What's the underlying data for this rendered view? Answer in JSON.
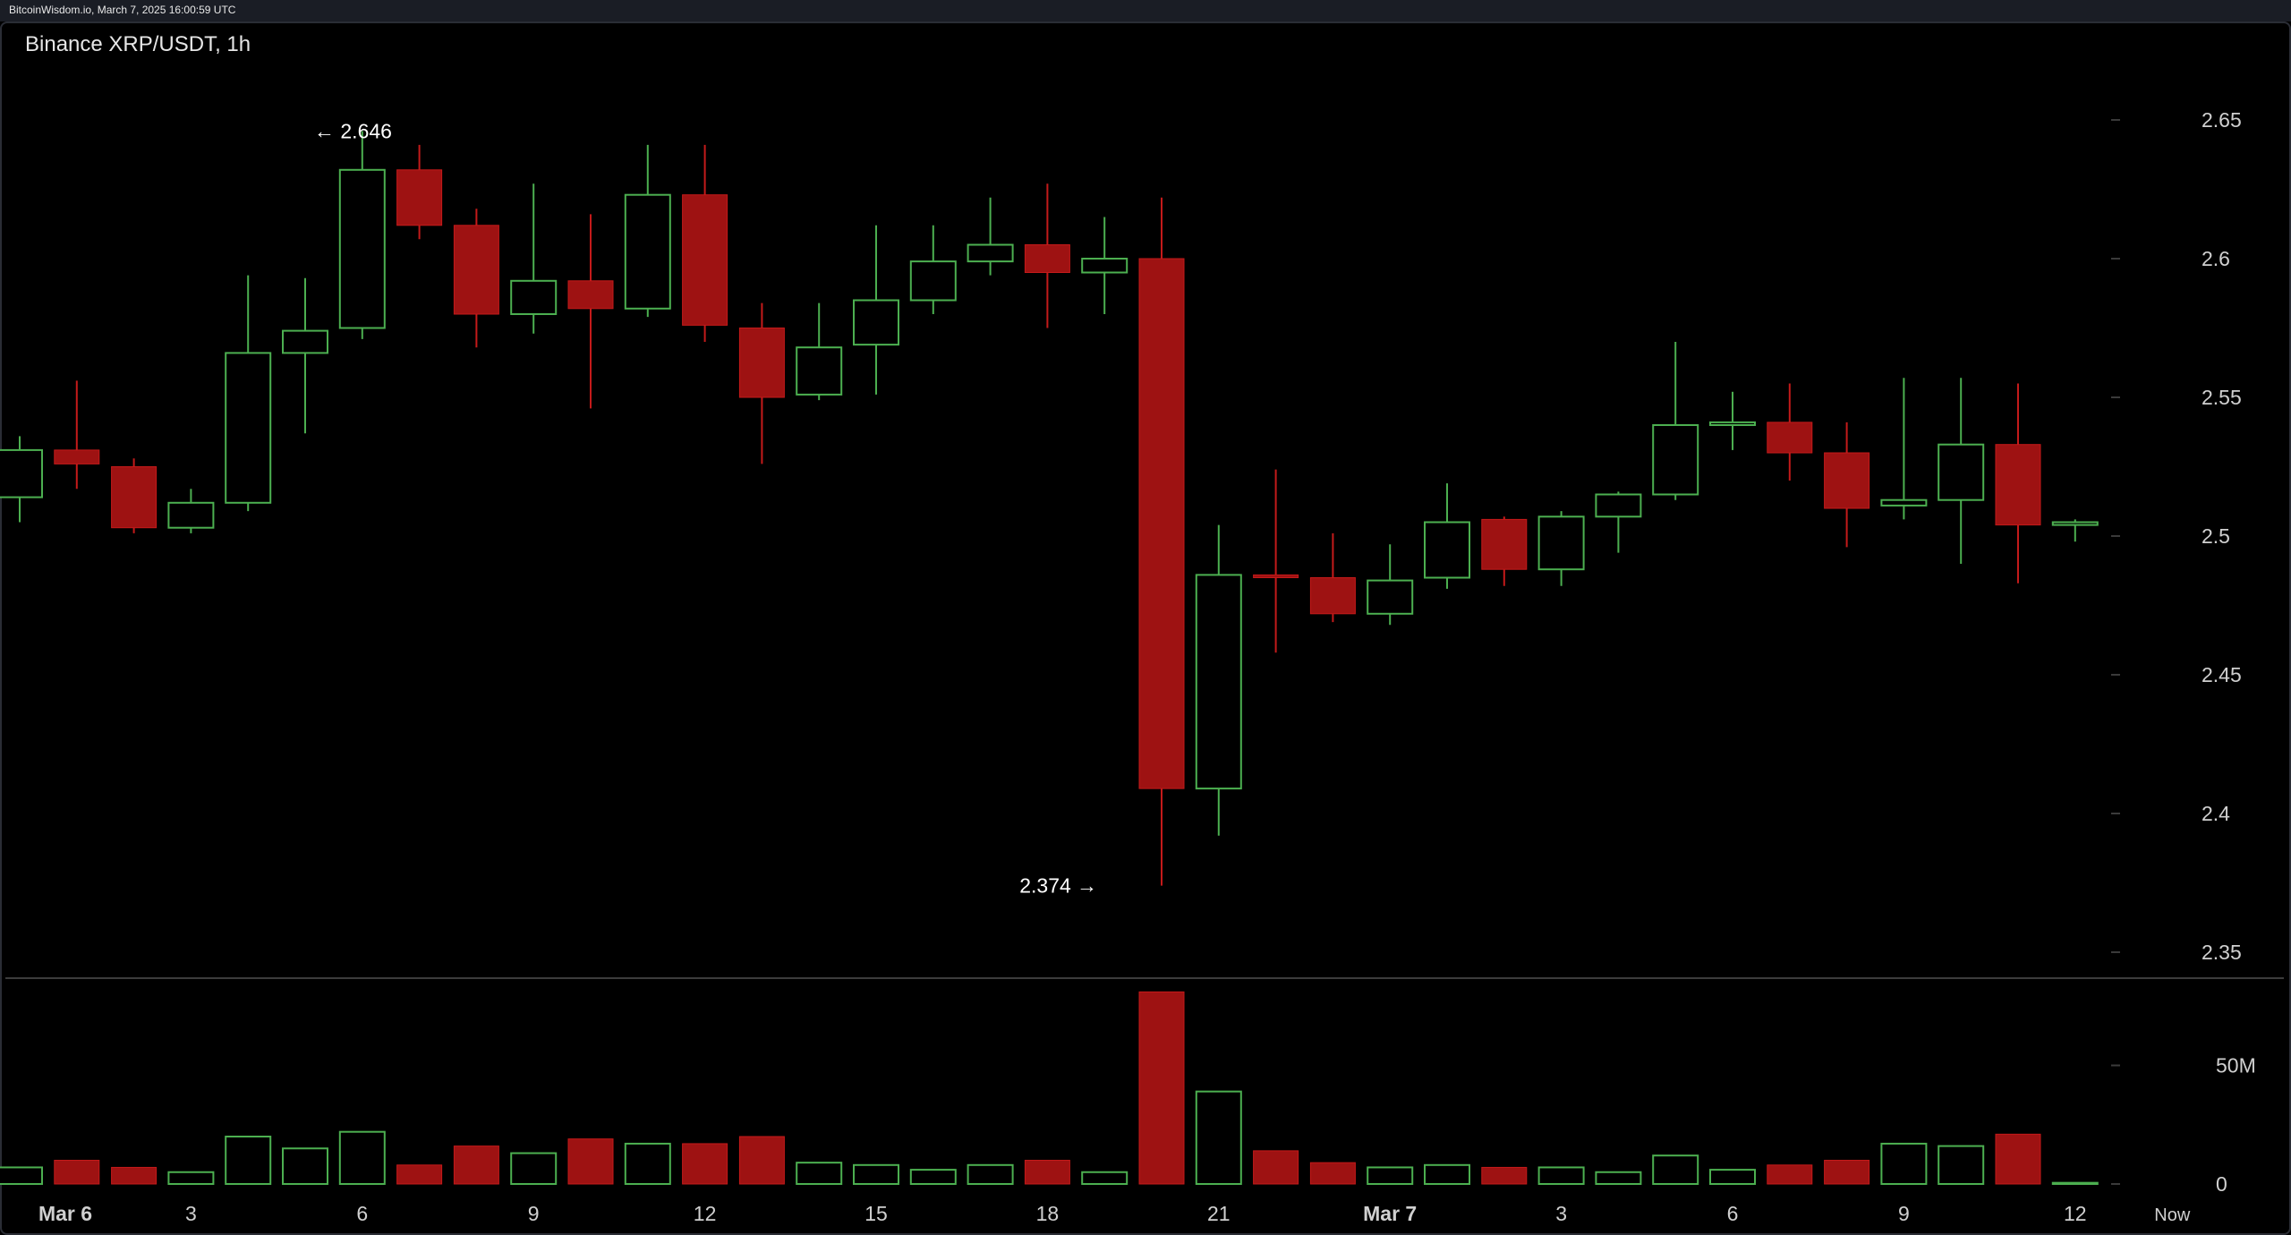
{
  "header": {
    "source": "BitcoinWisdom.io, March 7, 2025 16:00:59 UTC"
  },
  "chart_data": {
    "type": "candlestick",
    "title": "Binance XRP/USDT, 1h",
    "price_axis": {
      "ticks": [
        "2.65",
        "2.6",
        "2.55",
        "2.5",
        "2.45",
        "2.4",
        "2.35"
      ],
      "range": [
        2.33,
        2.665
      ]
    },
    "volume_axis": {
      "ticks": [
        "50M",
        "0"
      ],
      "max": 81
    },
    "time_labels": [
      {
        "i": 0.8,
        "label": "Mar 6",
        "bold": true
      },
      {
        "i": 3,
        "label": "3"
      },
      {
        "i": 6,
        "label": "6"
      },
      {
        "i": 9,
        "label": "9"
      },
      {
        "i": 12,
        "label": "12"
      },
      {
        "i": 15,
        "label": "15"
      },
      {
        "i": 18,
        "label": "18"
      },
      {
        "i": 21,
        "label": "21"
      },
      {
        "i": 24,
        "label": "Mar 7",
        "bold": true
      },
      {
        "i": 27,
        "label": "3"
      },
      {
        "i": 30,
        "label": "6"
      },
      {
        "i": 33,
        "label": "9"
      },
      {
        "i": 36,
        "label": "12"
      },
      {
        "i": 37.7,
        "label": "Now"
      }
    ],
    "annotations": [
      {
        "label": "← 2.646",
        "price": 2.646,
        "i": 5,
        "side": "right"
      },
      {
        "label": "2.374 →",
        "price": 2.374,
        "i": 19,
        "side": "left"
      }
    ],
    "candles": [
      {
        "open": 2.514,
        "high": 2.536,
        "low": 2.505,
        "close": 2.531,
        "volume": 7
      },
      {
        "open": 2.531,
        "high": 2.556,
        "low": 2.517,
        "close": 2.526,
        "volume": 10
      },
      {
        "open": 2.525,
        "high": 2.528,
        "low": 2.501,
        "close": 2.503,
        "volume": 7
      },
      {
        "open": 2.503,
        "high": 2.517,
        "low": 2.501,
        "close": 2.512,
        "volume": 5
      },
      {
        "open": 2.512,
        "high": 2.594,
        "low": 2.509,
        "close": 2.566,
        "volume": 20
      },
      {
        "open": 2.566,
        "high": 2.593,
        "low": 2.537,
        "close": 2.574,
        "volume": 15
      },
      {
        "open": 2.575,
        "high": 2.646,
        "low": 2.571,
        "close": 2.632,
        "volume": 22
      },
      {
        "open": 2.632,
        "high": 2.641,
        "low": 2.607,
        "close": 2.612,
        "volume": 8
      },
      {
        "open": 2.612,
        "high": 2.618,
        "low": 2.568,
        "close": 2.58,
        "volume": 16
      },
      {
        "open": 2.58,
        "high": 2.627,
        "low": 2.573,
        "close": 2.592,
        "volume": 13
      },
      {
        "open": 2.592,
        "high": 2.616,
        "low": 2.546,
        "close": 2.582,
        "volume": 19
      },
      {
        "open": 2.582,
        "high": 2.641,
        "low": 2.579,
        "close": 2.623,
        "volume": 17
      },
      {
        "open": 2.623,
        "high": 2.641,
        "low": 2.57,
        "close": 2.576,
        "volume": 17
      },
      {
        "open": 2.575,
        "high": 2.584,
        "low": 2.526,
        "close": 2.55,
        "volume": 20
      },
      {
        "open": 2.551,
        "high": 2.584,
        "low": 2.549,
        "close": 2.568,
        "volume": 9
      },
      {
        "open": 2.569,
        "high": 2.612,
        "low": 2.551,
        "close": 2.585,
        "volume": 8
      },
      {
        "open": 2.585,
        "high": 2.612,
        "low": 2.58,
        "close": 2.599,
        "volume": 6
      },
      {
        "open": 2.599,
        "high": 2.622,
        "low": 2.594,
        "close": 2.605,
        "volume": 8
      },
      {
        "open": 2.605,
        "high": 2.627,
        "low": 2.575,
        "close": 2.595,
        "volume": 10
      },
      {
        "open": 2.595,
        "high": 2.615,
        "low": 2.58,
        "close": 2.6,
        "volume": 5
      },
      {
        "open": 2.6,
        "high": 2.622,
        "low": 2.374,
        "close": 2.409,
        "volume": 81
      },
      {
        "open": 2.409,
        "high": 2.504,
        "low": 2.392,
        "close": 2.486,
        "volume": 39
      },
      {
        "open": 2.486,
        "high": 2.524,
        "low": 2.458,
        "close": 2.485,
        "volume": 14
      },
      {
        "open": 2.485,
        "high": 2.501,
        "low": 2.469,
        "close": 2.472,
        "volume": 9
      },
      {
        "open": 2.472,
        "high": 2.497,
        "low": 2.468,
        "close": 2.484,
        "volume": 7
      },
      {
        "open": 2.485,
        "high": 2.519,
        "low": 2.481,
        "close": 2.505,
        "volume": 8
      },
      {
        "open": 2.506,
        "high": 2.507,
        "low": 2.482,
        "close": 2.488,
        "volume": 7
      },
      {
        "open": 2.488,
        "high": 2.509,
        "low": 2.482,
        "close": 2.507,
        "volume": 7
      },
      {
        "open": 2.507,
        "high": 2.516,
        "low": 2.494,
        "close": 2.515,
        "volume": 5
      },
      {
        "open": 2.515,
        "high": 2.57,
        "low": 2.513,
        "close": 2.54,
        "volume": 12
      },
      {
        "open": 2.54,
        "high": 2.552,
        "low": 2.531,
        "close": 2.541,
        "volume": 6
      },
      {
        "open": 2.541,
        "high": 2.555,
        "low": 2.52,
        "close": 2.53,
        "volume": 8
      },
      {
        "open": 2.53,
        "high": 2.541,
        "low": 2.496,
        "close": 2.51,
        "volume": 10
      },
      {
        "open": 2.511,
        "high": 2.557,
        "low": 2.506,
        "close": 2.513,
        "volume": 17
      },
      {
        "open": 2.513,
        "high": 2.557,
        "low": 2.49,
        "close": 2.533,
        "volume": 16
      },
      {
        "open": 2.533,
        "high": 2.555,
        "low": 2.483,
        "close": 2.504,
        "volume": 21
      },
      {
        "open": 2.504,
        "high": 2.506,
        "low": 2.498,
        "close": 2.505,
        "volume": 0.5
      }
    ],
    "colors": {
      "up": "#4caf50",
      "down": "#9e1212",
      "downEdge": "#c41a1a",
      "axisText": "#d0d0d0",
      "tick": "#3a3a3a"
    }
  }
}
